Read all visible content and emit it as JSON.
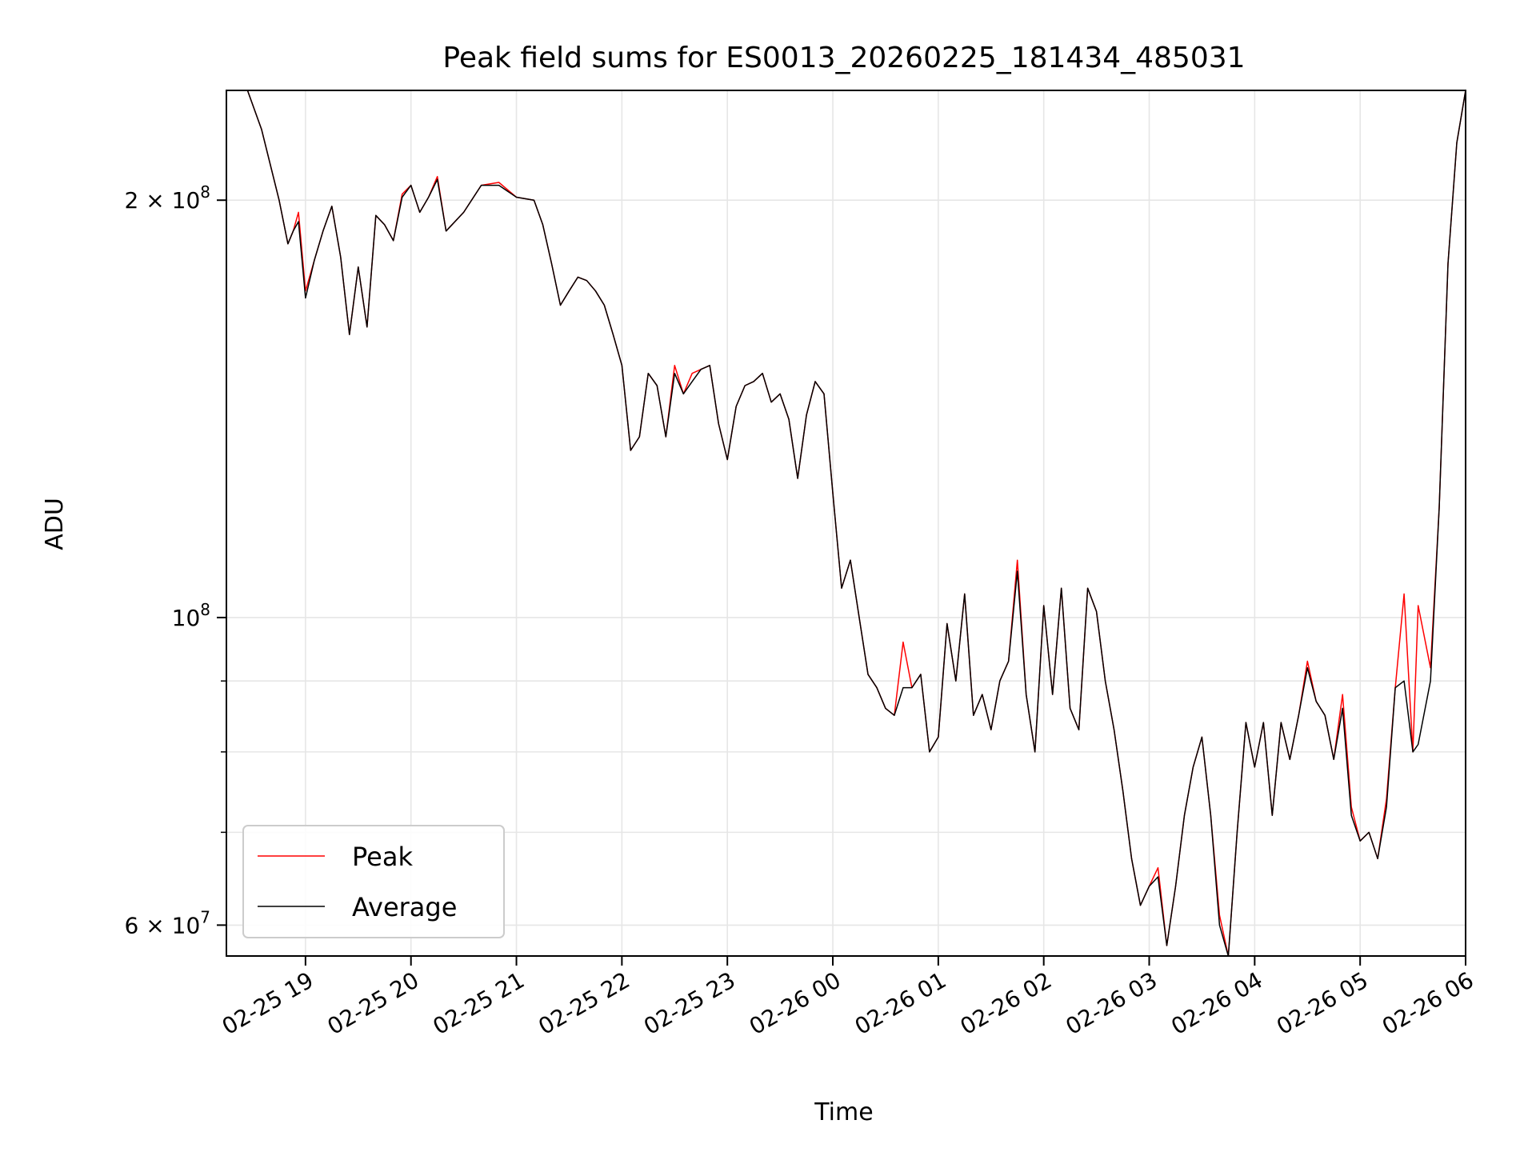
{
  "chart_data": {
    "type": "line",
    "title": "Peak field sums for ES0013_20260225_181434_485031",
    "xlabel": "Time",
    "ylabel": "ADU",
    "y_scale": "log",
    "grid": true,
    "legend_position": "lower-left",
    "x_range": [
      "02-25 18:15",
      "02-26 06:00"
    ],
    "ylim": [
      57000000,
      240000000
    ],
    "x_ticks": [
      "02-25 19",
      "02-25 20",
      "02-25 21",
      "02-25 22",
      "02-25 23",
      "02-26 00",
      "02-26 01",
      "02-26 02",
      "02-26 03",
      "02-26 04",
      "02-26 05",
      "02-26 06"
    ],
    "x_tick_hours": [
      19,
      20,
      21,
      22,
      23,
      24,
      25,
      26,
      27,
      28,
      29,
      30
    ],
    "y_major_ticks": [
      {
        "value": 200000000,
        "label": "2 × 10^8",
        "base": "2 × 10",
        "exp": "8"
      },
      {
        "value": 100000000,
        "label": "10^8",
        "base": "10",
        "exp": "8"
      },
      {
        "value": 60000000,
        "label": "6 × 10^7",
        "base": "6 × 10",
        "exp": "7"
      }
    ],
    "y_minor_ticks": [
      70000000,
      80000000,
      90000000
    ],
    "series": [
      {
        "name": "Peak",
        "color": "#ff0000",
        "x": [
          "02-25 18:15",
          "02-25 18:27",
          "02-25 18:35",
          "02-25 18:45",
          "02-25 18:50",
          "02-25 18:53",
          "02-25 18:56",
          "02-25 19:00",
          "02-25 19:05",
          "02-25 19:10",
          "02-25 19:15",
          "02-25 19:20",
          "02-25 19:25",
          "02-25 19:30",
          "02-25 19:35",
          "02-25 19:40",
          "02-25 19:45",
          "02-25 19:50",
          "02-25 19:55",
          "02-25 20:00",
          "02-25 20:05",
          "02-25 20:10",
          "02-25 20:15",
          "02-25 20:20",
          "02-25 20:30",
          "02-25 20:40",
          "02-25 20:50",
          "02-25 21:00",
          "02-25 21:10",
          "02-25 21:15",
          "02-25 21:20",
          "02-25 21:25",
          "02-25 21:30",
          "02-25 21:35",
          "02-25 21:40",
          "02-25 21:45",
          "02-25 21:50",
          "02-25 21:55",
          "02-25 22:00",
          "02-25 22:05",
          "02-25 22:10",
          "02-25 22:15",
          "02-25 22:20",
          "02-25 22:25",
          "02-25 22:30",
          "02-25 22:35",
          "02-25 22:40",
          "02-25 22:45",
          "02-25 22:50",
          "02-25 22:55",
          "02-25 23:00",
          "02-25 23:05",
          "02-25 23:10",
          "02-25 23:15",
          "02-25 23:20",
          "02-25 23:25",
          "02-25 23:30",
          "02-25 23:35",
          "02-25 23:40",
          "02-25 23:45",
          "02-25 23:50",
          "02-25 23:55",
          "02-26 00:00",
          "02-26 00:05",
          "02-26 00:10",
          "02-26 00:15",
          "02-26 00:20",
          "02-26 00:25",
          "02-26 00:30",
          "02-26 00:35",
          "02-26 00:40",
          "02-26 00:45",
          "02-26 00:50",
          "02-26 00:55",
          "02-26 01:00",
          "02-26 01:05",
          "02-26 01:10",
          "02-26 01:15",
          "02-26 01:20",
          "02-26 01:25",
          "02-26 01:30",
          "02-26 01:35",
          "02-26 01:40",
          "02-26 01:45",
          "02-26 01:50",
          "02-26 01:55",
          "02-26 02:00",
          "02-26 02:05",
          "02-26 02:10",
          "02-26 02:15",
          "02-26 02:20",
          "02-26 02:25",
          "02-26 02:30",
          "02-26 02:35",
          "02-26 02:40",
          "02-26 02:45",
          "02-26 02:50",
          "02-26 02:55",
          "02-26 03:00",
          "02-26 03:05",
          "02-26 03:10",
          "02-26 03:15",
          "02-26 03:20",
          "02-26 03:25",
          "02-26 03:30",
          "02-26 03:35",
          "02-26 03:40",
          "02-26 03:45",
          "02-26 03:50",
          "02-26 03:55",
          "02-26 04:00",
          "02-26 04:05",
          "02-26 04:10",
          "02-26 04:15",
          "02-26 04:20",
          "02-26 04:25",
          "02-26 04:30",
          "02-26 04:35",
          "02-26 04:40",
          "02-26 04:45",
          "02-26 04:50",
          "02-26 04:55",
          "02-26 05:00",
          "02-26 05:05",
          "02-26 05:10",
          "02-26 05:15",
          "02-26 05:20",
          "02-26 05:25",
          "02-26 05:30",
          "02-26 05:33",
          "02-26 05:40",
          "02-26 05:45",
          "02-26 05:50",
          "02-26 05:55",
          "02-26 06:00"
        ],
        "y": [
          240000000,
          240000000,
          225000000,
          200000000,
          186000000,
          190000000,
          196000000,
          172000000,
          181000000,
          190000000,
          198000000,
          182000000,
          160000000,
          179000000,
          162000000,
          195000000,
          192000000,
          187000000,
          202000000,
          205000000,
          196000000,
          201000000,
          208000000,
          190000000,
          196000000,
          205000000,
          206000000,
          201000000,
          200000000,
          192000000,
          180000000,
          168000000,
          172000000,
          176000000,
          175000000,
          172000000,
          168000000,
          160000000,
          152000000,
          132000000,
          135000000,
          150000000,
          147000000,
          135000000,
          152000000,
          145000000,
          150000000,
          151000000,
          152000000,
          138000000,
          130000000,
          142000000,
          147000000,
          148000000,
          150000000,
          143000000,
          145000000,
          139000000,
          126000000,
          140000000,
          148000000,
          145000000,
          123000000,
          105000000,
          110000000,
          100000000,
          91000000,
          89000000,
          86000000,
          85000000,
          96000000,
          89000000,
          91000000,
          80000000,
          82000000,
          99000000,
          90000000,
          104000000,
          85000000,
          88000000,
          83000000,
          90000000,
          93000000,
          110000000,
          88000000,
          80000000,
          102000000,
          88000000,
          105000000,
          86000000,
          83000000,
          105000000,
          101000000,
          90000000,
          83000000,
          75000000,
          67000000,
          62000000,
          64000000,
          66000000,
          58000000,
          64000000,
          72000000,
          78000000,
          82000000,
          72000000,
          61000000,
          57000000,
          70000000,
          84000000,
          78000000,
          84000000,
          72000000,
          84000000,
          79000000,
          85000000,
          93000000,
          87000000,
          85000000,
          79000000,
          88000000,
          73000000,
          69000000,
          70000000,
          67000000,
          74000000,
          89000000,
          104000000,
          80000000,
          102000000,
          92000000,
          120000000,
          180000000,
          220000000,
          240000000
        ]
      },
      {
        "name": "Average",
        "color": "#000000",
        "x": [
          "02-25 18:15",
          "02-25 18:27",
          "02-25 18:35",
          "02-25 18:45",
          "02-25 18:50",
          "02-25 18:53",
          "02-25 18:56",
          "02-25 19:00",
          "02-25 19:05",
          "02-25 19:10",
          "02-25 19:15",
          "02-25 19:20",
          "02-25 19:25",
          "02-25 19:30",
          "02-25 19:35",
          "02-25 19:40",
          "02-25 19:45",
          "02-25 19:50",
          "02-25 19:55",
          "02-25 20:00",
          "02-25 20:05",
          "02-25 20:10",
          "02-25 20:15",
          "02-25 20:20",
          "02-25 20:30",
          "02-25 20:40",
          "02-25 20:50",
          "02-25 21:00",
          "02-25 21:10",
          "02-25 21:15",
          "02-25 21:20",
          "02-25 21:25",
          "02-25 21:30",
          "02-25 21:35",
          "02-25 21:40",
          "02-25 21:45",
          "02-25 21:50",
          "02-25 21:55",
          "02-25 22:00",
          "02-25 22:05",
          "02-25 22:10",
          "02-25 22:15",
          "02-25 22:20",
          "02-25 22:25",
          "02-25 22:30",
          "02-25 22:35",
          "02-25 22:40",
          "02-25 22:45",
          "02-25 22:50",
          "02-25 22:55",
          "02-25 23:00",
          "02-25 23:05",
          "02-25 23:10",
          "02-25 23:15",
          "02-25 23:20",
          "02-25 23:25",
          "02-25 23:30",
          "02-25 23:35",
          "02-25 23:40",
          "02-25 23:45",
          "02-25 23:50",
          "02-25 23:55",
          "02-26 00:00",
          "02-26 00:05",
          "02-26 00:10",
          "02-26 00:15",
          "02-26 00:20",
          "02-26 00:25",
          "02-26 00:30",
          "02-26 00:35",
          "02-26 00:40",
          "02-26 00:45",
          "02-26 00:50",
          "02-26 00:55",
          "02-26 01:00",
          "02-26 01:05",
          "02-26 01:10",
          "02-26 01:15",
          "02-26 01:20",
          "02-26 01:25",
          "02-26 01:30",
          "02-26 01:35",
          "02-26 01:40",
          "02-26 01:45",
          "02-26 01:50",
          "02-26 01:55",
          "02-26 02:00",
          "02-26 02:05",
          "02-26 02:10",
          "02-26 02:15",
          "02-26 02:20",
          "02-26 02:25",
          "02-26 02:30",
          "02-26 02:35",
          "02-26 02:40",
          "02-26 02:45",
          "02-26 02:50",
          "02-26 02:55",
          "02-26 03:00",
          "02-26 03:05",
          "02-26 03:10",
          "02-26 03:15",
          "02-26 03:20",
          "02-26 03:25",
          "02-26 03:30",
          "02-26 03:35",
          "02-26 03:40",
          "02-26 03:45",
          "02-26 03:50",
          "02-26 03:55",
          "02-26 04:00",
          "02-26 04:05",
          "02-26 04:10",
          "02-26 04:15",
          "02-26 04:20",
          "02-26 04:25",
          "02-26 04:30",
          "02-26 04:35",
          "02-26 04:40",
          "02-26 04:45",
          "02-26 04:50",
          "02-26 04:55",
          "02-26 05:00",
          "02-26 05:05",
          "02-26 05:10",
          "02-26 05:15",
          "02-26 05:20",
          "02-26 05:25",
          "02-26 05:30",
          "02-26 05:33",
          "02-26 05:40",
          "02-26 05:45",
          "02-26 05:50",
          "02-26 05:55",
          "02-26 06:00"
        ],
        "y": [
          240000000,
          240000000,
          225000000,
          200000000,
          186000000,
          190000000,
          193000000,
          170000000,
          181000000,
          190000000,
          198000000,
          182000000,
          160000000,
          179000000,
          162000000,
          195000000,
          192000000,
          187000000,
          201000000,
          205000000,
          196000000,
          201000000,
          207000000,
          190000000,
          196000000,
          205000000,
          205000000,
          201000000,
          200000000,
          192000000,
          180000000,
          168000000,
          172000000,
          176000000,
          175000000,
          172000000,
          168000000,
          160000000,
          152000000,
          132000000,
          135000000,
          150000000,
          147000000,
          135000000,
          150000000,
          145000000,
          148000000,
          151000000,
          152000000,
          138000000,
          130000000,
          142000000,
          147000000,
          148000000,
          150000000,
          143000000,
          145000000,
          139000000,
          126000000,
          140000000,
          148000000,
          145000000,
          123000000,
          105000000,
          110000000,
          100000000,
          91000000,
          89000000,
          86000000,
          85000000,
          89000000,
          89000000,
          91000000,
          80000000,
          82000000,
          99000000,
          90000000,
          104000000,
          85000000,
          88000000,
          83000000,
          90000000,
          93000000,
          108000000,
          88000000,
          80000000,
          102000000,
          88000000,
          105000000,
          86000000,
          83000000,
          105000000,
          101000000,
          90000000,
          83000000,
          75000000,
          67000000,
          62000000,
          64000000,
          65000000,
          58000000,
          64000000,
          72000000,
          78000000,
          82000000,
          72000000,
          60000000,
          57000000,
          70000000,
          84000000,
          78000000,
          84000000,
          72000000,
          84000000,
          79000000,
          85000000,
          92000000,
          87000000,
          85000000,
          79000000,
          86000000,
          72000000,
          69000000,
          70000000,
          67000000,
          73000000,
          89000000,
          90000000,
          80000000,
          81000000,
          90000000,
          120000000,
          180000000,
          220000000,
          240000000
        ]
      }
    ]
  }
}
